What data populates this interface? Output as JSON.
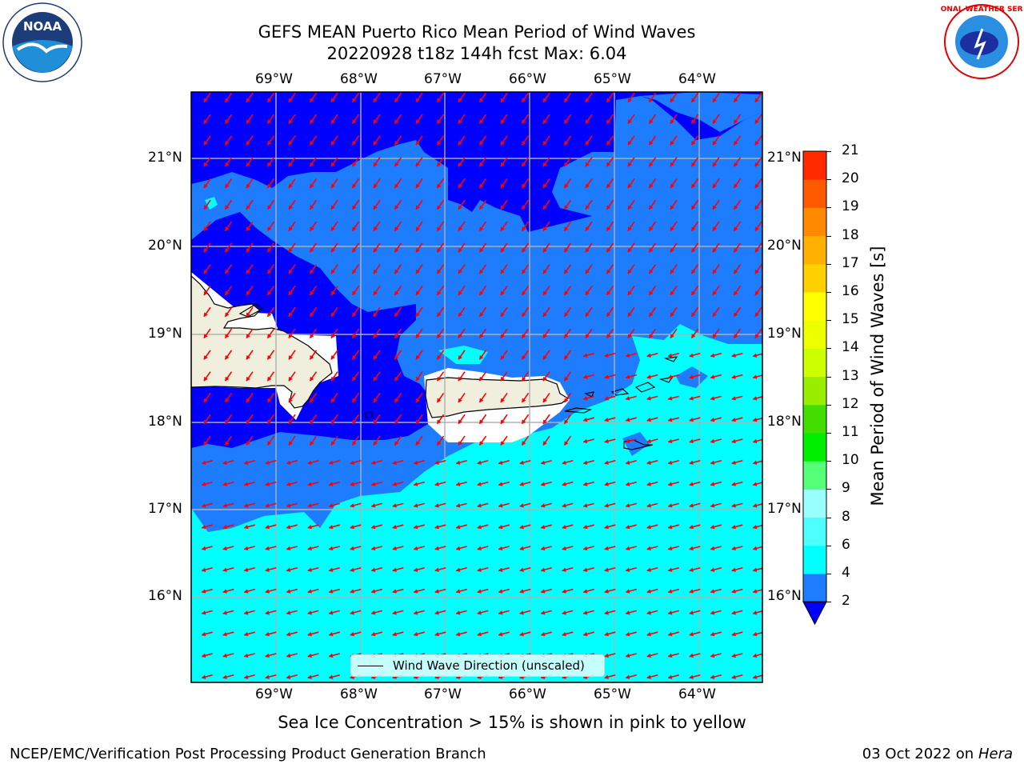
{
  "title": {
    "line1": "GEFS MEAN Puerto Rico Mean Period of Wind Waves",
    "line2": "20220928 t18z 144h fcst   Max: 6.04"
  },
  "logos": {
    "left": {
      "icon": "noaa-logo-icon",
      "text": "NOAA"
    },
    "right": {
      "icon": "nws-logo-icon",
      "text": "NATIONAL WEATHER SERVICE"
    }
  },
  "map": {
    "lon_labels": [
      "69°W",
      "68°W",
      "67°W",
      "66°W",
      "65°W",
      "64°W"
    ],
    "lat_labels": [
      "21°N",
      "20°N",
      "19°N",
      "18°N",
      "17°N",
      "16°N"
    ],
    "legend_label": "Wind Wave Direction (unscaled)",
    "colors": {
      "lt2": "#0000ff",
      "2to4": "#1e7cff",
      "4to6": "#00ffff",
      "land": "#f0eedc",
      "arrow": "#ff0000"
    }
  },
  "colorbar": {
    "title": "Mean Period of Wind Waves [s]",
    "levels": [
      "2",
      "4",
      "6",
      "8",
      "9",
      "10",
      "11",
      "12",
      "13",
      "14",
      "15",
      "16",
      "17",
      "18",
      "19",
      "20",
      "21"
    ],
    "colors": [
      "#1e7cff",
      "#00ffff",
      "#4dffff",
      "#99ffff",
      "#55ff77",
      "#00ee00",
      "#44dd00",
      "#99ee00",
      "#ccff00",
      "#eeff00",
      "#ffff00",
      "#ffd000",
      "#ffb000",
      "#ff8a00",
      "#ff5a00",
      "#ff2a00"
    ],
    "extend_color": "#0000ff"
  },
  "footer": {
    "note": "Sea Ice Concentration > 15% is shown in pink to yellow",
    "left": "NCEP/EMC/Verification Post Processing Product Generation Branch",
    "right_date": "03 Oct 2022 on ",
    "right_machine": "Hera"
  }
}
